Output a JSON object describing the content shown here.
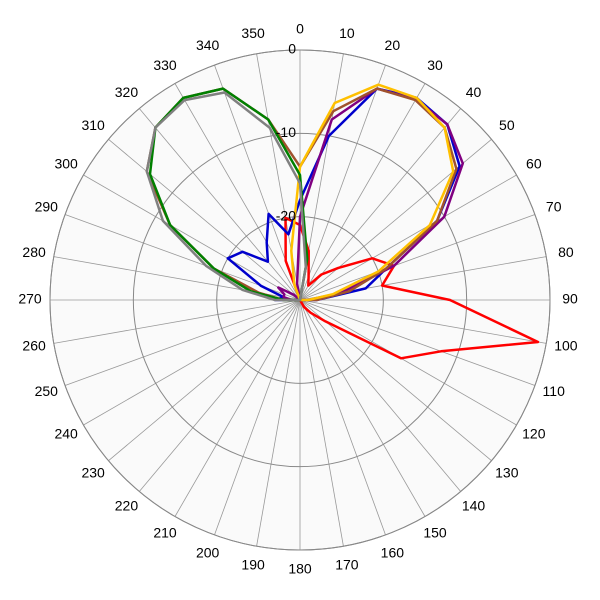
{
  "chart_data": {
    "type": "polar",
    "theta": [
      0,
      10,
      20,
      30,
      40,
      50,
      60,
      70,
      80,
      90,
      100,
      110,
      120,
      130,
      140,
      150,
      160,
      170,
      180,
      190,
      200,
      210,
      220,
      230,
      240,
      250,
      260,
      270,
      280,
      290,
      300,
      310,
      320,
      330,
      340,
      350
    ],
    "theta_ticks": [
      0,
      10,
      20,
      30,
      40,
      50,
      60,
      70,
      80,
      90,
      100,
      110,
      120,
      130,
      140,
      150,
      160,
      170,
      180,
      190,
      200,
      210,
      220,
      230,
      240,
      250,
      260,
      270,
      280,
      290,
      300,
      310,
      320,
      330,
      340,
      350
    ],
    "rlim": [
      -30,
      0
    ],
    "rticks": [
      -20,
      -10,
      0
    ],
    "series": [
      {
        "color": "#ff0000",
        "values": [
          -21,
          -24,
          -27,
          -28,
          -26,
          -24,
          -20,
          -18,
          -20,
          -12,
          -1,
          -12,
          -16,
          -26,
          -28,
          -29,
          -30,
          -30,
          -30,
          -30,
          -30,
          -30,
          -30,
          -30,
          -30,
          -30,
          -30,
          -30,
          -30,
          -30,
          -30,
          -30,
          -30,
          -30,
          -25,
          -20
        ]
      },
      {
        "color": "#0000cc",
        "values": [
          -18,
          -10,
          -3,
          -2,
          -2.5,
          -5,
          -11,
          -19,
          -22,
          -28,
          -30,
          -30,
          -30,
          -30,
          -30,
          -30,
          -30,
          -30,
          -30,
          -30,
          -30,
          -30,
          -30,
          -30,
          -30,
          -30,
          -30,
          -27,
          -28,
          -25,
          -20,
          -21,
          -24,
          -22,
          -19,
          -22
        ]
      },
      {
        "color": "#800080",
        "values": [
          -20,
          -8,
          -3,
          -2.2,
          -2.5,
          -4.5,
          -10,
          -18,
          -25,
          -29,
          -30,
          -30,
          -30,
          -30,
          -30,
          -30,
          -30,
          -30,
          -30,
          -30,
          -30,
          -30,
          -30,
          -30,
          -30,
          -30,
          -30,
          -29,
          -28,
          -28,
          -27,
          -29,
          -30,
          -30,
          -30,
          -28
        ]
      },
      {
        "color": "#a0522d",
        "values": [
          -14,
          -7,
          -3,
          -2.3,
          -3,
          -5.5,
          -11,
          -19,
          -24,
          -28,
          -30,
          -30,
          -30,
          -30,
          -30,
          -30,
          -30,
          -30,
          -30,
          -30,
          -30,
          -30,
          -30,
          -30,
          -30,
          -30,
          -30,
          -28,
          -25,
          -19,
          -12,
          -6,
          -3,
          -2,
          -3,
          -8
        ]
      },
      {
        "color": "#ffc000",
        "values": [
          -14,
          -6,
          -2.5,
          -2,
          -3,
          -6,
          -12,
          -20,
          -26,
          -29,
          -30,
          -30,
          -30,
          -30,
          -30,
          -30,
          -30,
          -30,
          -30,
          -30,
          -30,
          -30,
          -30,
          -30,
          -30,
          -30,
          -30,
          -30,
          -30,
          -30,
          -30,
          -30,
          -30,
          -30,
          -28,
          -24
        ]
      },
      {
        "color": "#008000",
        "values": [
          -15,
          -25,
          -30,
          -30,
          -30,
          -30,
          -30,
          -30,
          -30,
          -30,
          -30,
          -30,
          -30,
          -30,
          -30,
          -30,
          -30,
          -30,
          -30,
          -30,
          -30,
          -30,
          -30,
          -30,
          -30,
          -30,
          -30,
          -28,
          -24,
          -19,
          -12,
          -6.5,
          -3,
          -2,
          -3,
          -8
        ]
      },
      {
        "color": "#808080",
        "values": [
          -16,
          -26,
          -30,
          -30,
          -30,
          -30,
          -30,
          -30,
          -30,
          -30,
          -30,
          -30,
          -30,
          -30,
          -30,
          -30,
          -30,
          -30,
          -30,
          -30,
          -30,
          -30,
          -30,
          -30,
          -30,
          -30,
          -30,
          -27,
          -23,
          -18,
          -11,
          -6,
          -3,
          -2.3,
          -3.5,
          -9
        ]
      }
    ]
  }
}
